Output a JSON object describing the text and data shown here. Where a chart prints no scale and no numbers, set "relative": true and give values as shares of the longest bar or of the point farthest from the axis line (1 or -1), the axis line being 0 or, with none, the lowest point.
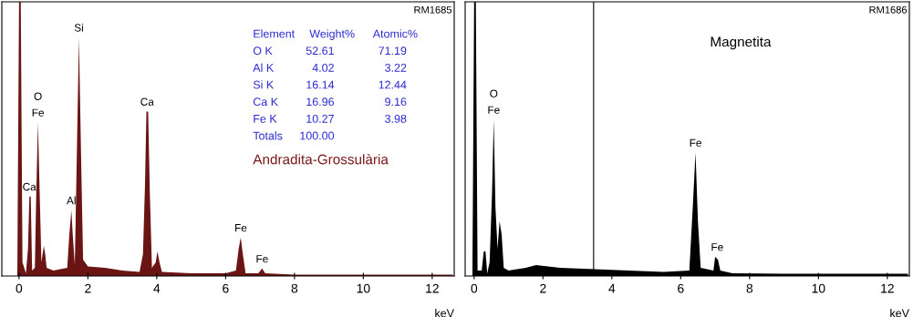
{
  "chart_data": [
    {
      "type": "area",
      "relative": true,
      "xlabel": "keV",
      "xlim": [
        -0.5,
        12.64
      ],
      "xticks": [
        0,
        2,
        4,
        6,
        8,
        10,
        12
      ],
      "grid": false,
      "x": [
        -0.3,
        -0.05,
        0,
        0.05,
        0.1,
        0.2,
        0.26,
        0.3,
        0.34,
        0.38,
        0.46,
        0.5,
        0.55,
        0.6,
        0.65,
        0.72,
        0.76,
        0.8,
        1.0,
        1.2,
        1.4,
        1.46,
        1.52,
        1.56,
        1.62,
        1.68,
        1.74,
        1.8,
        1.86,
        2.0,
        2.5,
        3.0,
        3.5,
        3.6,
        3.66,
        3.7,
        3.75,
        3.8,
        3.86,
        3.97,
        4.02,
        4.08,
        4.15,
        5.0,
        6.0,
        6.3,
        6.38,
        6.44,
        6.5,
        6.58,
        6.95,
        7.06,
        7.15,
        8,
        10,
        12,
        12.6
      ],
      "series": [
        {
          "color": "#6b1414",
          "values": [
            0,
            0,
            1,
            1,
            0.05,
            0.01,
            0.1,
            0.29,
            0.29,
            0.02,
            0.03,
            0.3,
            0.56,
            0.3,
            0.05,
            0.11,
            0.08,
            0.03,
            0.02,
            0.025,
            0.03,
            0.15,
            0.24,
            0.15,
            0.04,
            0.45,
            0.87,
            0.45,
            0.06,
            0.035,
            0.03,
            0.02,
            0.015,
            0.08,
            0.34,
            0.6,
            0.6,
            0.3,
            0.03,
            0.05,
            0.09,
            0.05,
            0.015,
            0.01,
            0.01,
            0.02,
            0.1,
            0.14,
            0.08,
            0.01,
            0.01,
            0.027,
            0.01,
            0.005,
            0.005,
            0.005,
            0.005
          ]
        }
      ],
      "annotations": [
        "RM1685",
        "Element",
        "Weight%",
        "Atomic%",
        "O K",
        "52.61",
        "71.19",
        "Al K",
        "4.02",
        "3.22",
        "Si K",
        "16.14",
        "12.44",
        "Ca K",
        "16.96",
        "9.16",
        "Fe K",
        "10.27",
        "3.98",
        "Totals",
        "100.00",
        "Andradita-Grossulària",
        {
          "text": "Ca",
          "x": 0.3,
          "y": 0.29
        },
        {
          "text": "O",
          "x": 0.55,
          "y": 0.56
        },
        {
          "text": "Fe",
          "x": 0.55,
          "y": 0.56
        },
        {
          "text": "Al",
          "x": 1.52,
          "y": 0.24
        },
        {
          "text": "Si",
          "x": 1.74,
          "y": 0.87
        },
        {
          "text": "Ca",
          "x": 3.72,
          "y": 0.6
        },
        {
          "text": "Fe",
          "x": 6.44,
          "y": 0.14
        },
        {
          "text": "Fe",
          "x": 7.06,
          "y": 0.027
        }
      ]
    },
    {
      "type": "area",
      "relative": true,
      "xlabel": "keV",
      "xlim": [
        -0.26,
        12.64
      ],
      "xticks": [
        0,
        2,
        4,
        6,
        8,
        10,
        12
      ],
      "grid": false,
      "x": [
        -0.2,
        -0.05,
        0,
        0.05,
        0.1,
        0.22,
        0.28,
        0.33,
        0.38,
        0.45,
        0.52,
        0.57,
        0.62,
        0.68,
        0.74,
        0.8,
        0.86,
        1.0,
        1.5,
        1.8,
        2.5,
        3.5,
        4.5,
        5.5,
        6.25,
        6.35,
        6.43,
        6.5,
        6.58,
        6.95,
        7.0,
        7.08,
        7.15,
        7.5,
        9,
        12.6
      ],
      "series": [
        {
          "color": "#000000",
          "values": [
            0,
            0,
            1,
            1,
            0.02,
            0.02,
            0.09,
            0.09,
            0.01,
            0.05,
            0.3,
            0.57,
            0.25,
            0.1,
            0.2,
            0.15,
            0.03,
            0.02,
            0.03,
            0.04,
            0.03,
            0.025,
            0.02,
            0.015,
            0.02,
            0.25,
            0.45,
            0.2,
            0.03,
            0.02,
            0.07,
            0.06,
            0.02,
            0.01,
            0.008,
            0.008
          ]
        }
      ],
      "ref_lines": [
        {
          "axis": "x",
          "value": 3.47,
          "color": "#000000"
        }
      ],
      "annotations": [
        "RM1686",
        "Magnetita",
        {
          "text": "O",
          "x": 0.57,
          "y": 0.57
        },
        {
          "text": "Fe",
          "x": 0.57,
          "y": 0.57
        },
        {
          "text": "Fe",
          "x": 6.43,
          "y": 0.45
        },
        {
          "text": "Fe",
          "x": 7.06,
          "y": 0.07
        }
      ]
    }
  ]
}
